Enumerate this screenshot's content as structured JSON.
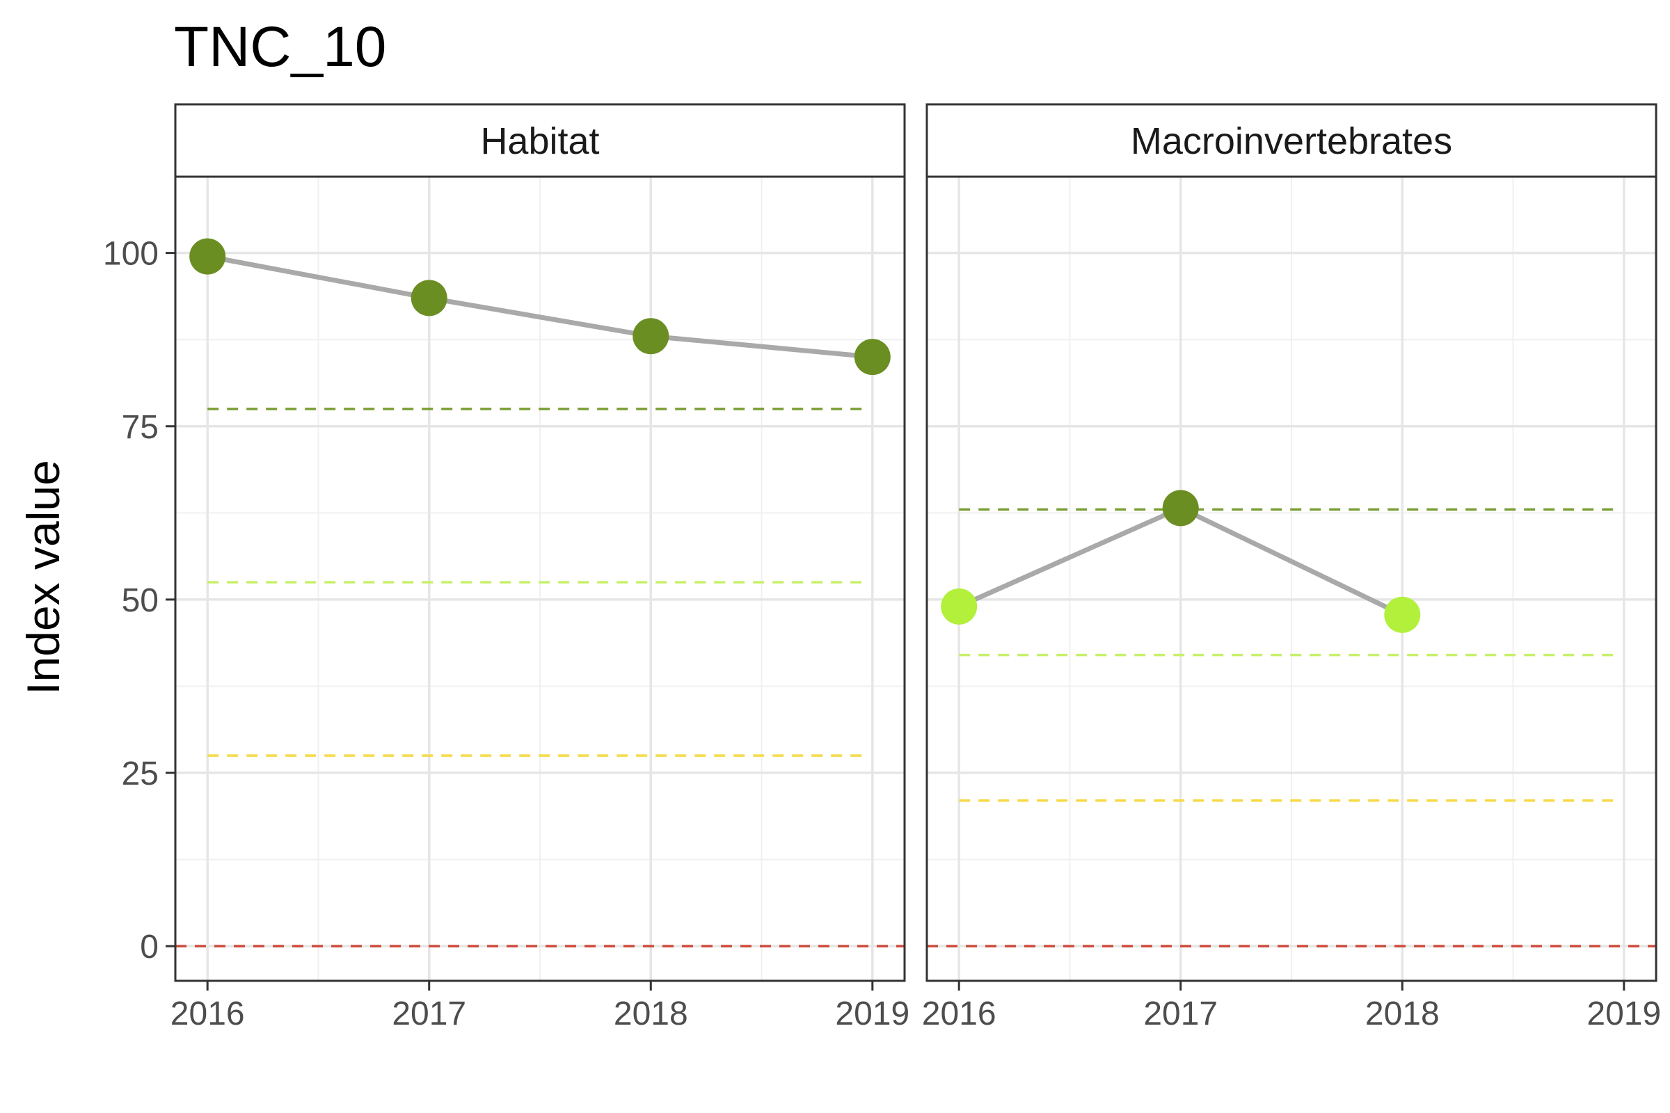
{
  "chart_data": {
    "type": "line",
    "title": "TNC_10",
    "xlabel": "",
    "ylabel": "Index value",
    "x": [
      2016,
      2017,
      2018,
      2019
    ],
    "ylim": [
      -5,
      111
    ],
    "yticks": [
      0,
      25,
      50,
      75,
      100
    ],
    "grid": true,
    "legend": "none",
    "line_color": "#A9A9A9",
    "panels": [
      {
        "name": "Habitat",
        "values": [
          99.5,
          93.5,
          88,
          85
        ],
        "point_colors": [
          "#6B8E23",
          "#6B8E23",
          "#6B8E23",
          "#6B8E23"
        ],
        "thresholds": [
          {
            "value": 77.5,
            "color": "#7A9E35"
          },
          {
            "value": 52.5,
            "color": "#C7F06A"
          },
          {
            "value": 27.5,
            "color": "#F5DA4A"
          },
          {
            "value": 0,
            "color": "#CD4A3A"
          }
        ]
      },
      {
        "name": "Macroinvertebrates",
        "values": [
          49,
          63.2,
          47.8,
          null
        ],
        "point_colors": [
          "#B2F03C",
          "#6B8E23",
          "#B2F03C",
          null
        ],
        "thresholds": [
          {
            "value": 63,
            "color": "#7A9E35"
          },
          {
            "value": 42,
            "color": "#C7F06A"
          },
          {
            "value": 21,
            "color": "#F5DA4A"
          },
          {
            "value": 0,
            "color": "#CD4A3A"
          }
        ]
      }
    ]
  }
}
